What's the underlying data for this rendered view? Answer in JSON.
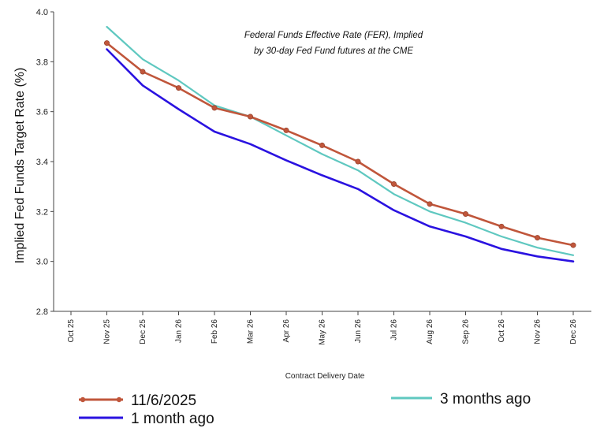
{
  "chart_data": {
    "type": "line",
    "title": "",
    "annotation": [
      "Federal Funds Effective Rate (FER), Implied",
      "by 30-day Fed Fund futures at the CME"
    ],
    "xlabel": "Contract Delivery Date",
    "ylabel": "Implied Fed Funds Target Rate (%)",
    "ylim": [
      2.8,
      4.0
    ],
    "yticks": [
      "2.8",
      "3.0",
      "3.2",
      "3.4",
      "3.6",
      "3.8",
      "4.0"
    ],
    "categories": [
      "Oct 25",
      "Nov 25",
      "Dec 25",
      "Jan 26",
      "Feb 26",
      "Mar 26",
      "Apr 26",
      "May 26",
      "Jun 26",
      "Jul 26",
      "Aug 26",
      "Sep 26",
      "Oct 26",
      "Nov 26",
      "Dec 26"
    ],
    "grid": false,
    "legend_position": "bottom",
    "series": [
      {
        "name": "11/6/2025",
        "color": "#c0563b",
        "marker": "circle",
        "values": [
          null,
          3.875,
          3.76,
          3.695,
          3.615,
          3.58,
          3.525,
          3.465,
          3.4,
          3.31,
          3.23,
          3.19,
          3.14,
          3.095,
          3.065
        ]
      },
      {
        "name": "3 months ago",
        "color": "#5fc8c0",
        "marker": "none",
        "values": [
          null,
          3.94,
          3.81,
          3.725,
          3.625,
          3.58,
          3.505,
          3.43,
          3.365,
          3.27,
          3.2,
          3.155,
          3.1,
          3.055,
          3.025
        ]
      },
      {
        "name": "1 month ago",
        "color": "#2a12e0",
        "marker": "none",
        "values": [
          null,
          3.85,
          3.705,
          3.61,
          3.52,
          3.47,
          3.405,
          3.345,
          3.29,
          3.205,
          3.14,
          3.1,
          3.05,
          3.02,
          3.0
        ]
      }
    ]
  }
}
